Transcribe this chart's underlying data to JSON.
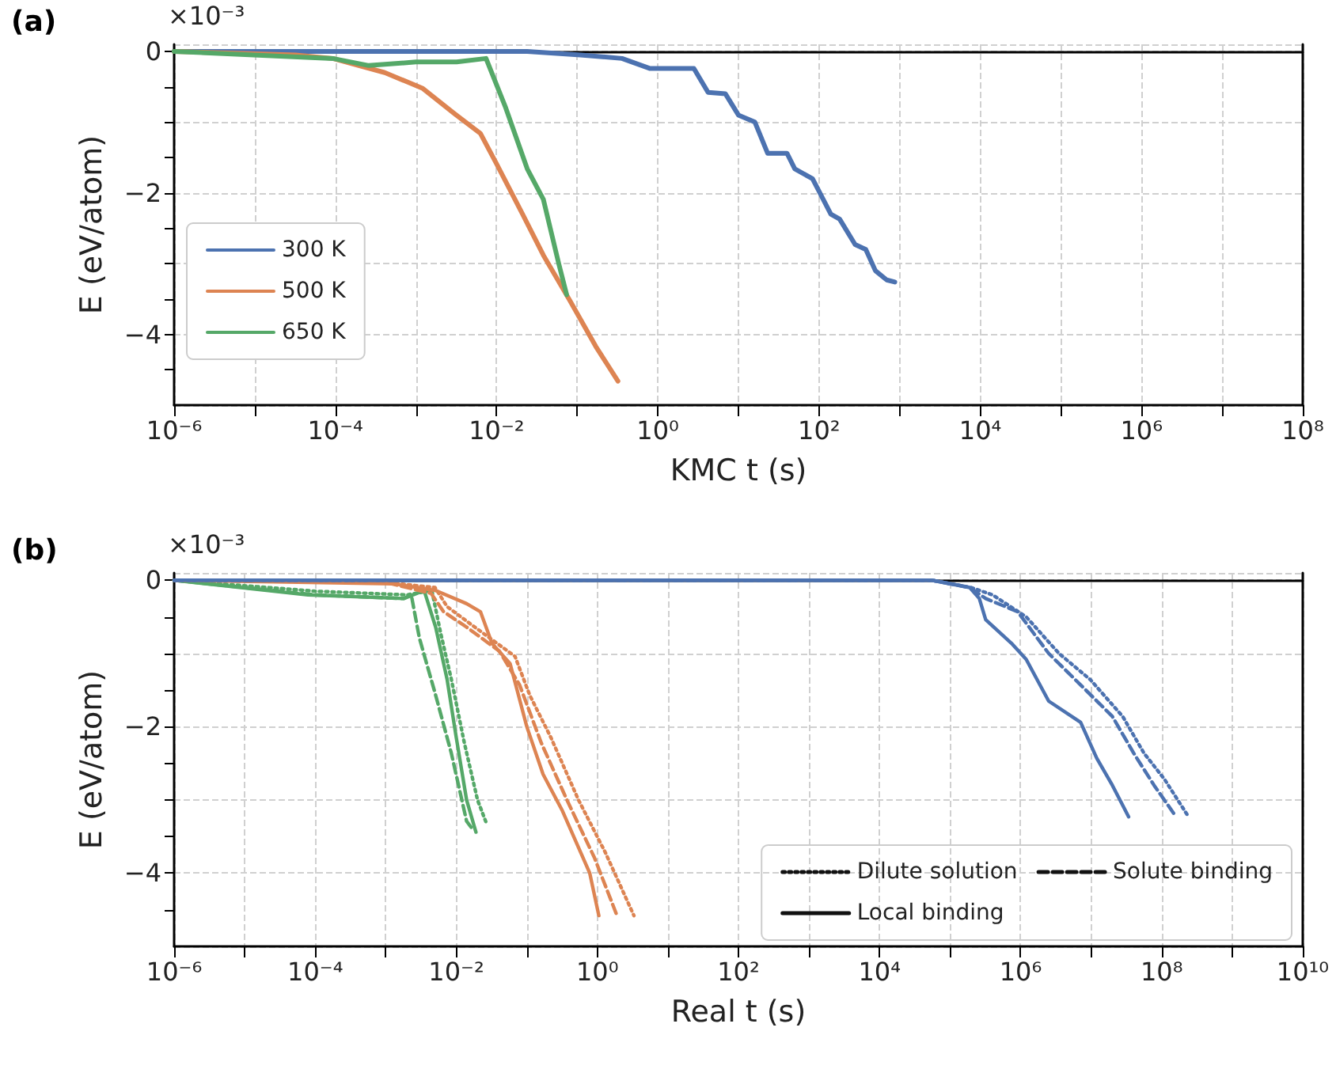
{
  "chart_data": [
    {
      "type": "line",
      "title": "(a)",
      "xlabel": "KMC t (s)",
      "ylabel": "E (eV/atom)",
      "annotations": [
        "×10⁻³"
      ],
      "log": "x",
      "grid": true,
      "legend": "bottom left",
      "line_style": "solid",
      "marker": "none",
      "xlim": [
        1e-06,
        100000000.0
      ],
      "xticks": [
        {
          "value": 1e-06,
          "label": "10⁻⁶"
        },
        {
          "value": 1e-05,
          "label": null
        },
        {
          "value": 0.0001,
          "label": "10⁻⁴"
        },
        {
          "value": 0.001,
          "label": null
        },
        {
          "value": 0.01,
          "label": "10⁻²"
        },
        {
          "value": 0.1,
          "label": null
        },
        {
          "value": 1,
          "label": "10⁰"
        },
        {
          "value": 10,
          "label": null
        },
        {
          "value": 100,
          "label": "10²"
        },
        {
          "value": 1000,
          "label": null
        },
        {
          "value": 10000.0,
          "label": "10⁴"
        },
        {
          "value": 100000.0,
          "label": null
        },
        {
          "value": 1000000.0,
          "label": "10⁶"
        },
        {
          "value": 10000000.0,
          "label": null
        },
        {
          "value": 100000000.0,
          "label": "10⁸"
        }
      ],
      "ylim": [
        -5,
        0.1
      ],
      "yticks": [
        {
          "value": -4.5,
          "label": null
        },
        -4,
        {
          "value": -3.5,
          "label": null
        },
        {
          "value": -3,
          "label": null
        },
        {
          "value": -2.5,
          "label": null
        },
        -2,
        {
          "value": -1.5,
          "label": null
        },
        {
          "value": -1,
          "label": null
        },
        {
          "value": -0.5,
          "label": null
        },
        0
      ],
      "series": [
        {
          "name": "300 K",
          "color": "#4c72b0",
          "x": [
            1e-06,
            0.024,
            0.11,
            0.36,
            0.79,
            2.8,
            4.2,
            6.9,
            10,
            16,
            23,
            40,
            50,
            83,
            140,
            180,
            280,
            380,
            500,
            690,
            870
          ],
          "values": [
            0,
            0,
            -0.05,
            -0.1,
            -0.24,
            -0.24,
            -0.58,
            -0.6,
            -0.9,
            -1.0,
            -1.44,
            -1.44,
            -1.66,
            -1.8,
            -2.3,
            -2.37,
            -2.73,
            -2.8,
            -3.1,
            -3.23,
            -3.26
          ]
        },
        {
          "name": "500 K",
          "color": "#dd8452",
          "x": [
            1e-06,
            3.2e-05,
            9.3e-05,
            0.00041,
            0.0012,
            0.003,
            0.0063,
            0.01,
            0.021,
            0.038,
            0.081,
            0.17,
            0.32
          ],
          "values": [
            0,
            -0.05,
            -0.1,
            -0.3,
            -0.52,
            -0.88,
            -1.16,
            -1.59,
            -2.3,
            -2.88,
            -3.52,
            -4.17,
            -4.66
          ]
        },
        {
          "name": "650 K",
          "color": "#55a868",
          "x": [
            1e-06,
            9.3e-05,
            0.00026,
            0.001,
            0.0032,
            0.0074,
            0.013,
            0.024,
            0.038,
            0.059,
            0.074
          ],
          "values": [
            0,
            -0.1,
            -0.2,
            -0.15,
            -0.15,
            -0.1,
            -0.8,
            -1.66,
            -2.09,
            -3.0,
            -3.44
          ]
        }
      ]
    },
    {
      "type": "line",
      "title": "(b)",
      "xlabel": "Real t (s)",
      "ylabel": "E (eV/atom)",
      "annotations": [
        "×10⁻³"
      ],
      "log": "x",
      "grid": true,
      "legend": "bottom right",
      "marker": "none",
      "xlim": [
        1e-06,
        10000000000.0
      ],
      "xticks": [
        {
          "value": 1e-06,
          "label": "10⁻⁶"
        },
        {
          "value": 1e-05,
          "label": null
        },
        {
          "value": 0.0001,
          "label": "10⁻⁴"
        },
        {
          "value": 0.001,
          "label": null
        },
        {
          "value": 0.01,
          "label": "10⁻²"
        },
        {
          "value": 0.1,
          "label": null
        },
        {
          "value": 1,
          "label": "10⁰"
        },
        {
          "value": 10,
          "label": null
        },
        {
          "value": 100,
          "label": "10²"
        },
        {
          "value": 1000,
          "label": null
        },
        {
          "value": 10000.0,
          "label": "10⁴"
        },
        {
          "value": 100000.0,
          "label": null
        },
        {
          "value": 1000000.0,
          "label": "10⁶"
        },
        {
          "value": 10000000.0,
          "label": null
        },
        {
          "value": 100000000.0,
          "label": "10⁸"
        },
        {
          "value": 1000000000.0,
          "label": null
        },
        {
          "value": 10000000000.0,
          "label": "10¹⁰"
        }
      ],
      "ylim": [
        -5,
        0.1
      ],
      "yticks": [
        {
          "value": -4.5,
          "label": null
        },
        -4,
        {
          "value": -3.5,
          "label": null
        },
        {
          "value": -3,
          "label": null
        },
        {
          "value": -2.5,
          "label": null
        },
        -2,
        {
          "value": -1.5,
          "label": null
        },
        {
          "value": -1,
          "label": null
        },
        {
          "value": -0.5,
          "label": null
        },
        0
      ],
      "series": [
        {
          "name": "Dilute solution",
          "line_style": "dotted",
          "color": "#55a868",
          "x": [
            1e-06,
            0.0001,
            0.002,
            0.0045,
            0.006,
            0.0085,
            0.013,
            0.02,
            0.027
          ],
          "values": [
            0,
            -0.15,
            -0.2,
            -0.14,
            -0.72,
            -1.35,
            -2.22,
            -3.0,
            -3.33
          ]
        },
        {
          "name": "Solute binding",
          "line_style": "dashed",
          "color": "#55a868",
          "x": [
            1e-06,
            0.0001,
            0.0018,
            0.0023,
            0.003,
            0.0051,
            0.0085,
            0.014,
            0.017
          ],
          "values": [
            0,
            -0.2,
            -0.25,
            -0.2,
            -0.79,
            -1.57,
            -2.36,
            -3.29,
            -3.4
          ]
        },
        {
          "name": "Local binding",
          "line_style": "solid",
          "color": "#55a868",
          "x": [
            1e-06,
            7.9e-05,
            0.0018,
            0.0035,
            0.0051,
            0.0074,
            0.01,
            0.014,
            0.019
          ],
          "values": [
            0,
            -0.2,
            -0.25,
            -0.14,
            -0.64,
            -1.35,
            -2.15,
            -3.0,
            -3.44
          ]
        },
        {
          "line_style": "dotted",
          "color": "#dd8452",
          "x": [
            1e-06,
            0.001,
            0.005,
            0.0074,
            0.016,
            0.068,
            0.11,
            0.22,
            0.54,
            1.3,
            3.3
          ],
          "values": [
            0,
            -0.03,
            -0.1,
            -0.36,
            -0.6,
            -1.04,
            -1.57,
            -2.15,
            -3.0,
            -3.72,
            -4.58
          ]
        },
        {
          "line_style": "dashed",
          "color": "#dd8452",
          "x": [
            1e-06,
            0.001,
            0.0044,
            0.0066,
            0.014,
            0.041,
            0.079,
            0.16,
            0.37,
            0.91,
            1.9
          ],
          "values": [
            0,
            -0.03,
            -0.18,
            -0.43,
            -0.64,
            -0.97,
            -1.43,
            -2.22,
            -3.0,
            -3.79,
            -4.58
          ]
        },
        {
          "line_style": "solid",
          "color": "#dd8452",
          "x": [
            1e-06,
            0.0013,
            0.0051,
            0.014,
            0.022,
            0.032,
            0.058,
            0.1,
            0.17,
            0.32,
            0.78,
            1.05
          ],
          "values": [
            0,
            -0.05,
            -0.14,
            -0.32,
            -0.43,
            -0.86,
            -1.14,
            -2.0,
            -2.65,
            -3.15,
            -4.0,
            -4.58
          ]
        },
        {
          "line_style": "dotted",
          "color": "#4c72b0",
          "x": [
            1e-06,
            55000.0,
            200000.0,
            400000.0,
            1200000.0,
            3500000.0,
            9800000.0,
            28000000.0,
            56000000.0,
            110000000.0,
            240000000.0
          ],
          "values": [
            0,
            0,
            -0.1,
            -0.2,
            -0.5,
            -1.0,
            -1.36,
            -1.86,
            -2.36,
            -2.72,
            -3.23
          ]
        },
        {
          "line_style": "dashed",
          "color": "#4c72b0",
          "x": [
            1e-06,
            55000.0,
            190000.0,
            320000.0,
            910000.0,
            2500000.0,
            7100000.0,
            20000000.0,
            40000000.0,
            78000000.0,
            160000000.0
          ],
          "values": [
            0,
            0,
            -0.1,
            -0.25,
            -0.43,
            -1.0,
            -1.43,
            -1.86,
            -2.36,
            -2.8,
            -3.23
          ]
        },
        {
          "line_style": "solid",
          "color": "#4c72b0",
          "x": [
            1e-06,
            55000.0,
            190000.0,
            260000.0,
            320000.0,
            740000.0,
            1200000.0,
            2500000.0,
            7100000.0,
            12000000.0,
            20000000.0,
            34000000.0
          ],
          "values": [
            0,
            0,
            -0.1,
            -0.25,
            -0.54,
            -0.86,
            -1.08,
            -1.65,
            -1.94,
            -2.43,
            -2.8,
            -3.23
          ]
        }
      ]
    }
  ]
}
